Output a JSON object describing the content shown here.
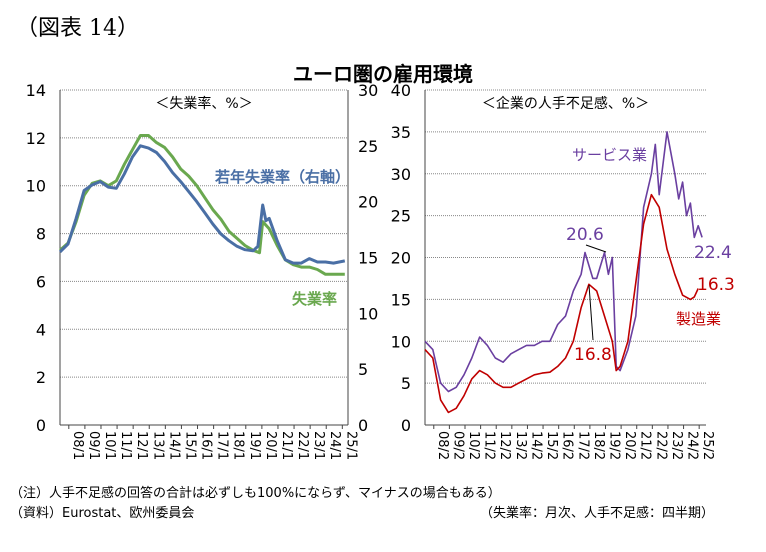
{
  "figure_label": "（図表 14）",
  "title": "ユーロ圏の雇用環境",
  "notes": {
    "note1": "（注）人手不足感の回答の合計は必ずしも100%にならず、マイナスの場合もある）",
    "source": "（資料）Eurostat、欧州委員会",
    "frequency": "（失業率：月次、人手不足感：四半期）"
  },
  "chart_data": [
    {
      "type": "line",
      "title": "＜失業率、%＞",
      "ylim": [
        0,
        14
      ],
      "ylim_right": [
        0,
        30
      ],
      "yticks": [
        0,
        2,
        4,
        6,
        8,
        10,
        12,
        14
      ],
      "yticks_right": [
        0,
        5,
        10,
        15,
        20,
        25,
        30
      ],
      "xticks": [
        "08/1",
        "09/1",
        "10/1",
        "11/1",
        "12/1",
        "13/1",
        "14/1",
        "15/1",
        "16/1",
        "17/1",
        "18/1",
        "19/1",
        "20/1",
        "21/1",
        "22/1",
        "23/1",
        "24/1",
        "25/1"
      ],
      "grid": true,
      "series": [
        {
          "name": "失業率",
          "axis": "left",
          "color": "#6aa84f",
          "x": [
            2008.0,
            2008.5,
            2009.0,
            2009.5,
            2010.0,
            2010.5,
            2011.0,
            2011.5,
            2012.0,
            2012.5,
            2013.0,
            2013.5,
            2014.0,
            2014.5,
            2015.0,
            2015.5,
            2016.0,
            2016.5,
            2017.0,
            2017.5,
            2018.0,
            2018.5,
            2019.0,
            2019.5,
            2020.0,
            2020.4,
            2020.6,
            2021.0,
            2021.5,
            2022.0,
            2022.5,
            2023.0,
            2023.5,
            2024.0,
            2024.5,
            2025.0,
            2025.7
          ],
          "values": [
            7.3,
            7.6,
            8.5,
            9.6,
            10.1,
            10.2,
            10.0,
            10.2,
            10.9,
            11.5,
            12.1,
            12.1,
            11.8,
            11.6,
            11.2,
            10.7,
            10.4,
            10.0,
            9.5,
            9.0,
            8.6,
            8.1,
            7.8,
            7.5,
            7.3,
            7.2,
            8.5,
            8.2,
            7.5,
            6.9,
            6.7,
            6.6,
            6.6,
            6.5,
            6.3,
            6.3,
            6.3
          ]
        },
        {
          "name": "若年失業率（右軸）",
          "axis": "right",
          "color": "#4a6fa5",
          "x": [
            2008.0,
            2008.5,
            2009.0,
            2009.5,
            2010.0,
            2010.5,
            2011.0,
            2011.5,
            2012.0,
            2012.5,
            2013.0,
            2013.5,
            2014.0,
            2014.5,
            2015.0,
            2015.5,
            2016.0,
            2016.5,
            2017.0,
            2017.5,
            2018.0,
            2018.5,
            2019.0,
            2019.5,
            2020.0,
            2020.3,
            2020.6,
            2020.8,
            2021.0,
            2021.5,
            2022.0,
            2022.5,
            2023.0,
            2023.5,
            2024.0,
            2024.5,
            2025.0,
            2025.7
          ],
          "values": [
            15.5,
            16.2,
            18.5,
            21.0,
            21.5,
            21.8,
            21.3,
            21.2,
            22.5,
            24.0,
            25.0,
            24.8,
            24.4,
            23.6,
            22.6,
            21.8,
            20.9,
            20.0,
            19.0,
            18.0,
            17.1,
            16.5,
            16.0,
            15.7,
            15.6,
            16.0,
            19.7,
            18.3,
            18.5,
            16.5,
            14.8,
            14.5,
            14.5,
            14.9,
            14.6,
            14.6,
            14.5,
            14.7
          ]
        }
      ],
      "annotations": [
        "若年失業率（右軸）",
        "失業率"
      ]
    },
    {
      "type": "line",
      "title": "＜企業の人手不足感、%＞",
      "ylim": [
        0,
        40
      ],
      "yticks": [
        0,
        5,
        10,
        15,
        20,
        25,
        30,
        35,
        40
      ],
      "xticks": [
        "08/2",
        "09/2",
        "10/2",
        "11/2",
        "12/2",
        "13/2",
        "14/2",
        "15/2",
        "16/2",
        "17/2",
        "18/2",
        "19/2",
        "20/2",
        "21/2",
        "22/2",
        "23/2",
        "24/2",
        "25/2"
      ],
      "grid": true,
      "series": [
        {
          "name": "サービス業",
          "color": "#6a3fa0",
          "x": [
            2008.0,
            2008.5,
            2009.0,
            2009.5,
            2010.0,
            2010.5,
            2011.0,
            2011.5,
            2012.0,
            2012.5,
            2013.0,
            2013.5,
            2014.0,
            2014.5,
            2015.0,
            2015.5,
            2016.0,
            2016.5,
            2017.0,
            2017.5,
            2018.0,
            2018.25,
            2018.75,
            2019.0,
            2019.5,
            2019.75,
            2020.0,
            2020.25,
            2020.5,
            2021.0,
            2021.5,
            2022.0,
            2022.5,
            2022.75,
            2023.0,
            2023.5,
            2024.0,
            2024.25,
            2024.5,
            2024.75,
            2025.0,
            2025.25,
            2025.5,
            2025.75
          ],
          "values": [
            10,
            9,
            5,
            4,
            4.5,
            6,
            8,
            10.5,
            9.5,
            8,
            7.5,
            8.5,
            9,
            9.5,
            9.5,
            10,
            10,
            12,
            13,
            16,
            18,
            20.6,
            17.5,
            17.5,
            20.6,
            18,
            20,
            7,
            6.5,
            9,
            13,
            26,
            30,
            33.5,
            27.5,
            35,
            30,
            27,
            29,
            25,
            26.5,
            22.4,
            23.8,
            22.4
          ]
        },
        {
          "name": "製造業",
          "color": "#c00000",
          "x": [
            2008.0,
            2008.5,
            2009.0,
            2009.5,
            2010.0,
            2010.5,
            2011.0,
            2011.5,
            2012.0,
            2012.5,
            2013.0,
            2013.5,
            2014.0,
            2014.5,
            2015.0,
            2015.5,
            2016.0,
            2016.5,
            2017.0,
            2017.5,
            2018.0,
            2018.5,
            2019.0,
            2019.5,
            2020.0,
            2020.25,
            2020.5,
            2021.0,
            2021.5,
            2022.0,
            2022.5,
            2023.0,
            2023.5,
            2024.0,
            2024.5,
            2025.0,
            2025.25,
            2025.5
          ],
          "values": [
            9,
            8,
            3,
            1.5,
            2,
            3.5,
            5.5,
            6.5,
            6,
            5,
            4.5,
            4.5,
            5,
            5.5,
            6,
            6.2,
            6.3,
            7,
            8,
            10,
            14,
            16.8,
            16,
            13,
            10,
            6.5,
            7,
            10,
            17,
            24,
            27.5,
            26,
            21,
            18,
            15.5,
            15,
            15.3,
            16.3
          ]
        }
      ],
      "annotations": [
        "サービス業",
        "製造業",
        "20.6",
        "16.8",
        "22.4",
        "16.3"
      ]
    }
  ]
}
